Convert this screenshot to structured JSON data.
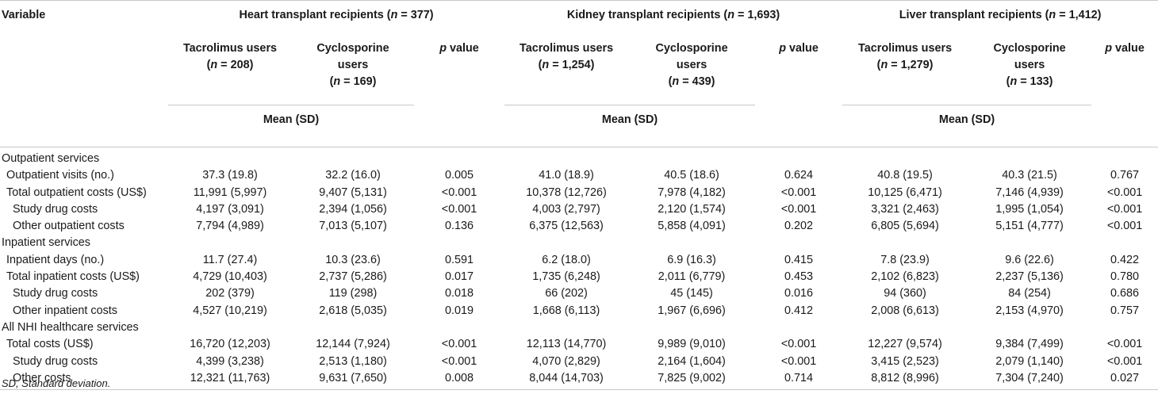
{
  "header": {
    "variable": "Variable",
    "groups": [
      {
        "name": "Heart transplant recipients (",
        "n_italic": "n",
        "rest": " = 377)"
      },
      {
        "name": "Kidney transplant recipients (",
        "n_italic": "n",
        "rest": " = 1,693)"
      },
      {
        "name": "Liver transplant recipients (",
        "n_italic": "n",
        "rest": " = 1,412)"
      }
    ],
    "subgroups": [
      {
        "tac_line1": "Tacrolimus users",
        "tac_n": " = 208)",
        "cyc_line1": "Cyclosporine",
        "cyc_line2": "users",
        "cyc_n": " = 169)"
      },
      {
        "tac_line1": "Tacrolimus users",
        "tac_n": " = 1,254)",
        "cyc_line1": "Cyclosporine",
        "cyc_line2": "users",
        "cyc_n": " = 439)"
      },
      {
        "tac_line1": "Tacrolimus users",
        "tac_n": " = 1,279)",
        "cyc_line1": "Cyclosporine",
        "cyc_line2": "users",
        "cyc_n": " = 133)"
      }
    ],
    "n_open": "(",
    "n_letter": "n",
    "p_letter": "p",
    "p_rest": " value",
    "mean_sd": "Mean (SD)"
  },
  "rows": [
    {
      "label": "Outpatient services",
      "level": 0,
      "cells": [
        "",
        "",
        "",
        "",
        "",
        "",
        "",
        "",
        ""
      ]
    },
    {
      "label": "Outpatient visits (no.)",
      "level": 1,
      "cells": [
        "37.3 (19.8)",
        "32.2 (16.0)",
        "0.005",
        "41.0 (18.9)",
        "40.5 (18.6)",
        "0.624",
        "40.8 (19.5)",
        "40.3 (21.5)",
        "0.767"
      ]
    },
    {
      "label": "Total outpatient costs (US$)",
      "level": 1,
      "cells": [
        "11,991 (5,997)",
        "9,407 (5,131)",
        "<0.001",
        "10,378 (12,726)",
        "7,978 (4,182)",
        "<0.001",
        "10,125 (6,471)",
        "7,146 (4,939)",
        "<0.001"
      ]
    },
    {
      "label": "Study drug costs",
      "level": 2,
      "cells": [
        "4,197 (3,091)",
        "2,394 (1,056)",
        "<0.001",
        "4,003 (2,797)",
        "2,120 (1,574)",
        "<0.001",
        "3,321 (2,463)",
        "1,995 (1,054)",
        "<0.001"
      ]
    },
    {
      "label": "Other outpatient costs",
      "level": 2,
      "cells": [
        "7,794 (4,989)",
        "7,013 (5,107)",
        "0.136",
        "6,375 (12,563)",
        "5,858 (4,091)",
        "0.202",
        "6,805 (5,694)",
        "5,151 (4,777)",
        "<0.001"
      ]
    },
    {
      "label": "Inpatient services",
      "level": 0,
      "cells": [
        "",
        "",
        "",
        "",
        "",
        "",
        "",
        "",
        ""
      ]
    },
    {
      "label": "Inpatient days (no.)",
      "level": 1,
      "cells": [
        "11.7 (27.4)",
        "10.3 (23.6)",
        "0.591",
        "6.2 (18.0)",
        "6.9 (16.3)",
        "0.415",
        "7.8 (23.9)",
        "9.6 (22.6)",
        "0.422"
      ]
    },
    {
      "label": "Total inpatient costs (US$)",
      "level": 1,
      "cells": [
        "4,729 (10,403)",
        "2,737 (5,286)",
        "0.017",
        "1,735 (6,248)",
        "2,011 (6,779)",
        "0.453",
        "2,102 (6,823)",
        "2,237 (5,136)",
        "0.780"
      ]
    },
    {
      "label": "Study drug costs",
      "level": 2,
      "cells": [
        "202 (379)",
        "119 (298)",
        "0.018",
        "66 (202)",
        "45 (145)",
        "0.016",
        "94 (360)",
        "84 (254)",
        "0.686"
      ]
    },
    {
      "label": "Other inpatient costs",
      "level": 2,
      "cells": [
        "4,527 (10,219)",
        "2,618 (5,035)",
        "0.019",
        "1,668 (6,113)",
        "1,967 (6,696)",
        "0.412",
        "2,008 (6,613)",
        "2,153 (4,970)",
        "0.757"
      ]
    },
    {
      "label": "All NHI healthcare services",
      "level": 0,
      "cells": [
        "",
        "",
        "",
        "",
        "",
        "",
        "",
        "",
        ""
      ]
    },
    {
      "label": "Total costs (US$)",
      "level": 1,
      "cells": [
        "16,720 (12,203)",
        "12,144 (7,924)",
        "<0.001",
        "12,113 (14,770)",
        "9,989 (9,010)",
        "<0.001",
        "12,227 (9,574)",
        "9,384 (7,499)",
        "<0.001"
      ]
    },
    {
      "label": "Study drug costs",
      "level": 2,
      "cells": [
        "4,399 (3,238)",
        "2,513 (1,180)",
        "<0.001",
        "4,070 (2,829)",
        "2,164 (1,604)",
        "<0.001",
        "3,415 (2,523)",
        "2,079 (1,140)",
        "<0.001"
      ]
    },
    {
      "label": "Other costs",
      "level": 2,
      "cells": [
        "12,321 (11,763)",
        "9,631 (7,650)",
        "0.008",
        "8,044 (14,703)",
        "7,825 (9,002)",
        "0.714",
        "8,812 (8,996)",
        "7,304 (7,240)",
        "0.027"
      ]
    }
  ],
  "footnote": "SD, Standard deviation."
}
